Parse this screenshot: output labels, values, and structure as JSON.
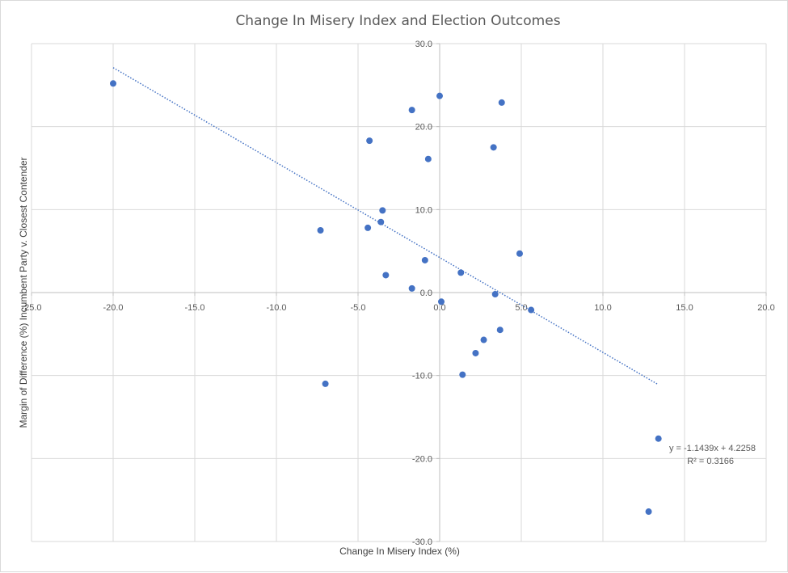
{
  "chart_data": {
    "type": "scatter",
    "title": "Change In Misery Index and Election Outcomes",
    "xlabel": "Change In Misery Index (%)",
    "ylabel": "Margin of Difference (%) Incumbent Party v. Closest Contender",
    "xlim": [
      -25,
      20
    ],
    "ylim": [
      -30,
      30
    ],
    "x_ticks": [
      "-25.0",
      "-20.0",
      "-15.0",
      "-10.0",
      "-5.0",
      "0.0",
      "5.0",
      "10.0",
      "15.0",
      "20.0"
    ],
    "y_ticks": [
      "30.0",
      "20.0",
      "10.0",
      "0.0",
      "-10.0",
      "-20.0",
      "-30.0"
    ],
    "grid": true,
    "marker_color": "#4472c4",
    "points": [
      {
        "x": -20.0,
        "y": 25.2
      },
      {
        "x": -7.3,
        "y": 7.5
      },
      {
        "x": -7.0,
        "y": -11.0
      },
      {
        "x": -4.4,
        "y": 7.8
      },
      {
        "x": -4.3,
        "y": 18.3
      },
      {
        "x": -3.6,
        "y": 8.5
      },
      {
        "x": -3.5,
        "y": 9.9
      },
      {
        "x": -3.3,
        "y": 2.1
      },
      {
        "x": -1.7,
        "y": 22.0
      },
      {
        "x": -1.7,
        "y": 0.5
      },
      {
        "x": -0.9,
        "y": 3.9
      },
      {
        "x": -0.7,
        "y": 16.1
      },
      {
        "x": 0.0,
        "y": 23.7
      },
      {
        "x": 0.1,
        "y": -1.1
      },
      {
        "x": 1.3,
        "y": 2.4
      },
      {
        "x": 1.4,
        "y": -9.9
      },
      {
        "x": 2.2,
        "y": -7.3
      },
      {
        "x": 2.7,
        "y": -5.7
      },
      {
        "x": 3.3,
        "y": 17.5
      },
      {
        "x": 3.4,
        "y": -0.2
      },
      {
        "x": 3.7,
        "y": -4.5
      },
      {
        "x": 3.8,
        "y": 22.9
      },
      {
        "x": 4.9,
        "y": 4.7
      },
      {
        "x": 5.6,
        "y": -2.1
      },
      {
        "x": 12.8,
        "y": -26.4
      },
      {
        "x": 13.4,
        "y": -17.6
      }
    ],
    "trendline": {
      "type": "linear",
      "slope": -1.1439,
      "intercept": 4.2258,
      "x_range": [
        -20.0,
        13.4
      ],
      "color": "#4472c4",
      "style": "dotted",
      "equation": "y = -1.1439x + 4.2258",
      "r_squared": "R² = 0.3166"
    }
  }
}
